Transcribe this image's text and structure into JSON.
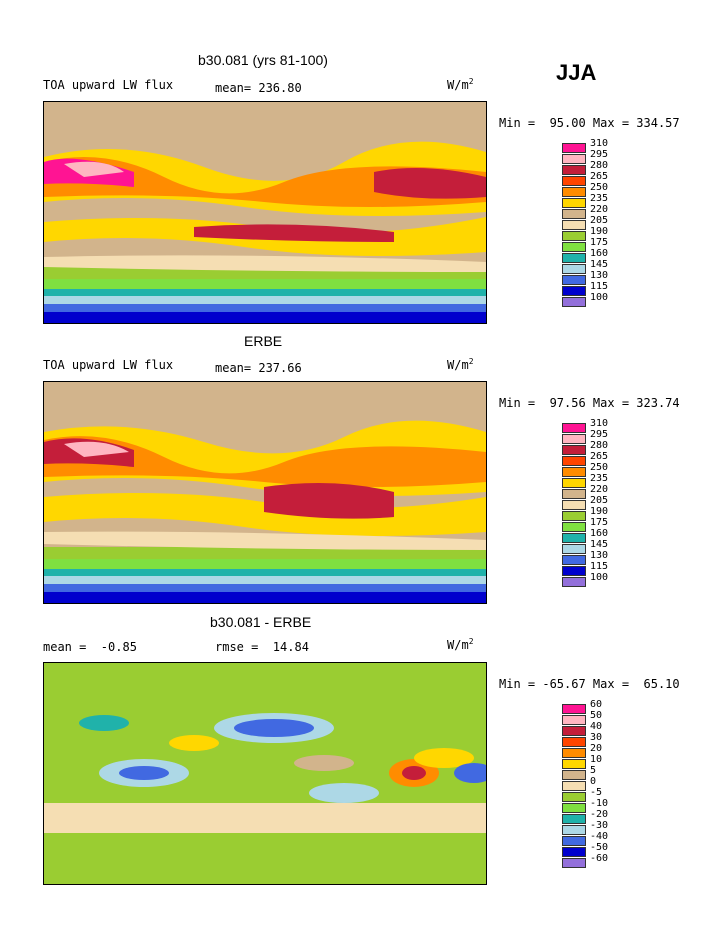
{
  "season": "JJA",
  "panels": [
    {
      "title": "b30.081 (yrs 81-100)",
      "var_label": "TOA upward LW flux",
      "stat_label": "mean= 236.80",
      "unit": "W/m",
      "unit_exp": "2",
      "minmax": "Min =  95.00 Max = 334.57",
      "levels": [
        "310",
        "295",
        "280",
        "265",
        "250",
        "235",
        "220",
        "205",
        "190",
        "175",
        "160",
        "145",
        "130",
        "115",
        "100"
      ],
      "colors": [
        "#ff1493",
        "#ffb6c1",
        "#c41e3a",
        "#ff4500",
        "#ff8c00",
        "#ffd700",
        "#ffff33",
        "#d2b48c",
        "#f5deb3",
        "#9acd32",
        "#7fe040",
        "#20b2aa",
        "#add8e6",
        "#4169e1",
        "#0000cd",
        "#9370db"
      ]
    },
    {
      "title": "ERBE",
      "var_label": "TOA upward LW flux",
      "stat_label": "mean= 237.66",
      "unit": "W/m",
      "unit_exp": "2",
      "minmax": "Min =  97.56 Max = 323.74",
      "levels": [
        "310",
        "295",
        "280",
        "265",
        "250",
        "235",
        "220",
        "205",
        "190",
        "175",
        "160",
        "145",
        "130",
        "115",
        "100"
      ],
      "colors": [
        "#ff1493",
        "#ffb6c1",
        "#c41e3a",
        "#ff4500",
        "#ff8c00",
        "#ffd700",
        "#ffff33",
        "#d2b48c",
        "#f5deb3",
        "#9acd32",
        "#7fe040",
        "#20b2aa",
        "#add8e6",
        "#4169e1",
        "#0000cd",
        "#9370db"
      ]
    },
    {
      "title": "b30.081 - ERBE",
      "var_label": "mean =  -0.85",
      "stat_label": "rmse =  14.84",
      "unit": "W/m",
      "unit_exp": "2",
      "minmax": "Min = -65.67 Max =  65.10",
      "levels": [
        "60",
        "50",
        "40",
        "30",
        "20",
        "10",
        "5",
        "0",
        "-5",
        "-10",
        "-20",
        "-30",
        "-40",
        "-50",
        "-60"
      ],
      "colors": [
        "#ff1493",
        "#ffb6c1",
        "#c41e3a",
        "#ff4500",
        "#ff8c00",
        "#ffd700",
        "#d2b48c",
        "#f5deb3",
        "#9acd32",
        "#7fe040",
        "#20b2aa",
        "#add8e6",
        "#4169e1",
        "#0000cd",
        "#9370db"
      ]
    }
  ]
}
